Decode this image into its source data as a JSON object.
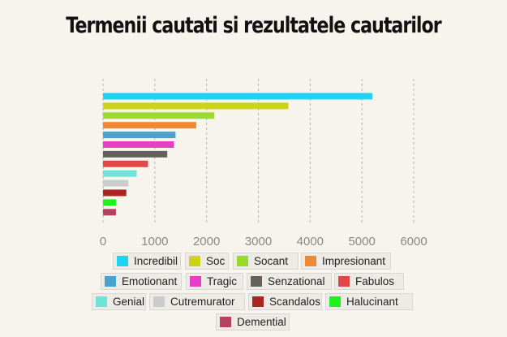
{
  "chart_data": {
    "type": "bar",
    "orientation": "horizontal",
    "title": "Termenii cautati si rezultatele cautarilor",
    "xlabel": "",
    "ylabel": "",
    "xlim": [
      0,
      6000
    ],
    "x_ticks": [
      "0",
      "1000",
      "2000",
      "3000",
      "4000",
      "5000",
      "6000"
    ],
    "grid": "vertical dashed",
    "legend_position": "bottom",
    "series": [
      {
        "name": "Incredibil",
        "value": 5200,
        "color": "#1ed3f5"
      },
      {
        "name": "Soc",
        "value": 3580,
        "color": "#ccd318"
      },
      {
        "name": "Socant",
        "value": 2150,
        "color": "#9ada2c"
      },
      {
        "name": "Impresionant",
        "value": 1800,
        "color": "#ec8a38"
      },
      {
        "name": "Emotionant",
        "value": 1400,
        "color": "#4aa3cf"
      },
      {
        "name": "Tragic",
        "value": 1370,
        "color": "#e63ec6"
      },
      {
        "name": "Senzational",
        "value": 1240,
        "color": "#665f5c"
      },
      {
        "name": "Fabulos",
        "value": 870,
        "color": "#e04848"
      },
      {
        "name": "Genial",
        "value": 650,
        "color": "#6ee3d7"
      },
      {
        "name": "Cutremurator",
        "value": 490,
        "color": "#cccccc"
      },
      {
        "name": "Scandalos",
        "value": 450,
        "color": "#ab2424"
      },
      {
        "name": "Halucinant",
        "value": 250,
        "color": "#1cf21c"
      },
      {
        "name": "Demential",
        "value": 250,
        "color": "#b54060"
      }
    ]
  }
}
